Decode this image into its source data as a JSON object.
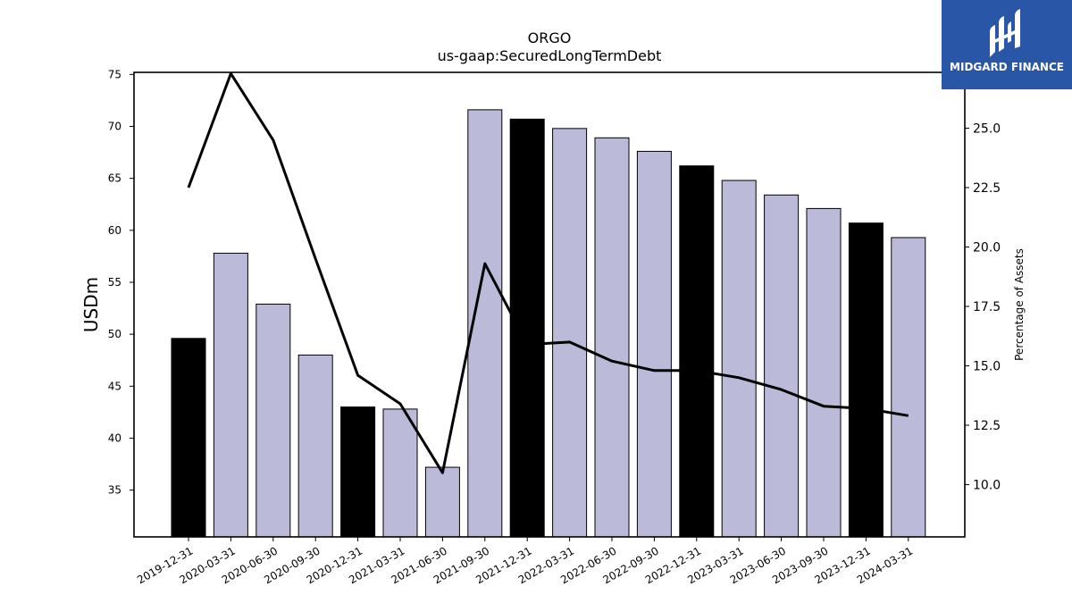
{
  "chart_data": {
    "type": "bar",
    "title": "ORGO",
    "subtitle": "us-gaap:SecuredLongTermDebt",
    "ylabel": "USDm",
    "y2label": "Percentage of Assets",
    "categories": [
      "2019-12-31",
      "2020-03-31",
      "2020-06-30",
      "2020-09-30",
      "2020-12-31",
      "2021-03-31",
      "2021-06-30",
      "2021-09-30",
      "2021-12-31",
      "2022-03-31",
      "2022-06-30",
      "2022-09-30",
      "2022-12-31",
      "2023-03-31",
      "2023-06-30",
      "2023-09-30",
      "2023-12-31",
      "2024-03-31"
    ],
    "series": [
      {
        "values": [
          49.6,
          57.8,
          52.9,
          48.0,
          43.0,
          42.8,
          37.2,
          71.6,
          70.7,
          69.8,
          68.9,
          67.6,
          66.2,
          64.8,
          63.4,
          62.1,
          60.7,
          59.3
        ]
      },
      {
        "axis": "right",
        "type": "line",
        "values": [
          22.5,
          27.3,
          24.5,
          19.5,
          14.6,
          13.4,
          10.5,
          19.3,
          15.9,
          16.0,
          15.2,
          14.8,
          14.8,
          14.5,
          14.0,
          13.3,
          13.2,
          12.9
        ]
      }
    ],
    "bar_colors": [
      "#000000",
      "#bcbad9",
      "#bcbad9",
      "#bcbad9",
      "#000000",
      "#bcbad9",
      "#bcbad9",
      "#bcbad9",
      "#000000",
      "#bcbad9",
      "#bcbad9",
      "#bcbad9",
      "#000000",
      "#bcbad9",
      "#bcbad9",
      "#bcbad9",
      "#000000",
      "#bcbad9"
    ],
    "ylim": [
      30.5,
      75.2
    ],
    "yticks": [
      35,
      40,
      45,
      50,
      55,
      60,
      65,
      70,
      75
    ],
    "y2lim": [
      7.8,
      27.35
    ],
    "y2ticks": [
      "10.0",
      "12.5",
      "15.0",
      "17.5",
      "20.0",
      "22.5",
      "25.0"
    ],
    "grid": false,
    "line_color": "#000000"
  },
  "logo": {
    "text": "MIDGARD FINANCE",
    "bg_color": "#2a56a8",
    "icon": "midgard-logo-icon"
  }
}
